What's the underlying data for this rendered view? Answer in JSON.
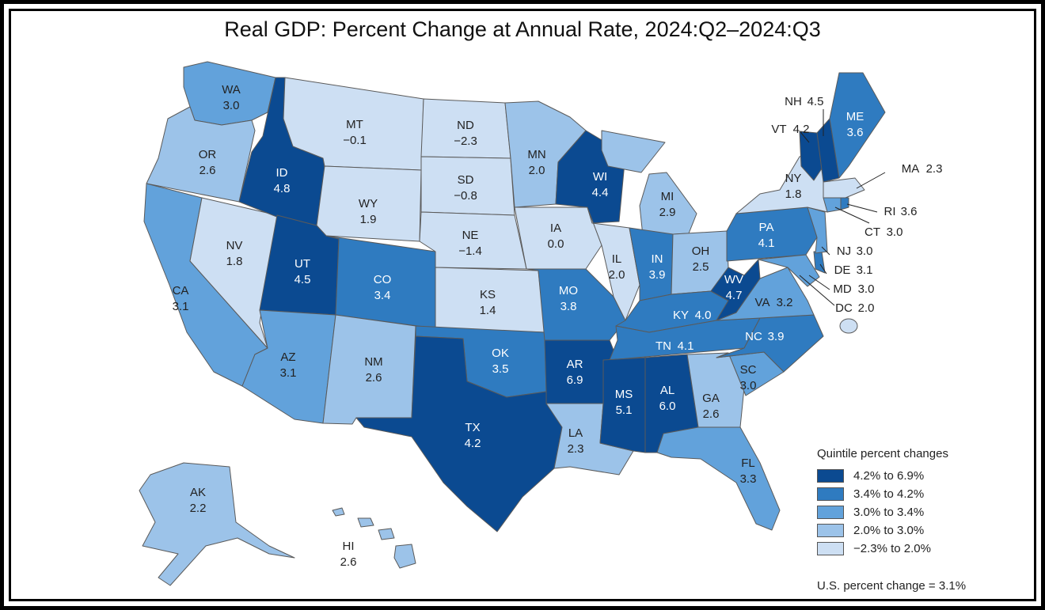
{
  "title": "Real GDP: Percent Change at Annual Rate, 2024:Q2–2024:Q3",
  "colors": {
    "q5": "#0b4a91",
    "q4": "#2f7bc0",
    "q3": "#62a2db",
    "q2": "#9cc3e9",
    "q1": "#cddff3"
  },
  "legend": {
    "title": "Quintile percent changes",
    "items": [
      {
        "label": "4.2% to 6.9%",
        "color": "#0b4a91"
      },
      {
        "label": "3.4% to 4.2%",
        "color": "#2f7bc0"
      },
      {
        "label": "3.0% to 3.4%",
        "color": "#62a2db"
      },
      {
        "label": "2.0% to 3.0%",
        "color": "#9cc3e9"
      },
      {
        "label": "−2.3% to 2.0%",
        "color": "#cddff3"
      }
    ]
  },
  "us_total": "U.S. percent change = 3.1%",
  "states": {
    "WA": {
      "abbr": "WA",
      "value": "3.0"
    },
    "OR": {
      "abbr": "OR",
      "value": "2.6"
    },
    "CA": {
      "abbr": "CA",
      "value": "3.1"
    },
    "NV": {
      "abbr": "NV",
      "value": "1.8"
    },
    "ID": {
      "abbr": "ID",
      "value": "4.8"
    },
    "MT": {
      "abbr": "MT",
      "value": "−0.1"
    },
    "WY": {
      "abbr": "WY",
      "value": "1.9"
    },
    "UT": {
      "abbr": "UT",
      "value": "4.5"
    },
    "AZ": {
      "abbr": "AZ",
      "value": "3.1"
    },
    "CO": {
      "abbr": "CO",
      "value": "3.4"
    },
    "NM": {
      "abbr": "NM",
      "value": "2.6"
    },
    "ND": {
      "abbr": "ND",
      "value": "−2.3"
    },
    "SD": {
      "abbr": "SD",
      "value": "−0.8"
    },
    "NE": {
      "abbr": "NE",
      "value": "−1.4"
    },
    "KS": {
      "abbr": "KS",
      "value": "1.4"
    },
    "OK": {
      "abbr": "OK",
      "value": "3.5"
    },
    "TX": {
      "abbr": "TX",
      "value": "4.2"
    },
    "MN": {
      "abbr": "MN",
      "value": "2.0"
    },
    "IA": {
      "abbr": "IA",
      "value": "0.0"
    },
    "MO": {
      "abbr": "MO",
      "value": "3.8"
    },
    "AR": {
      "abbr": "AR",
      "value": "6.9"
    },
    "LA": {
      "abbr": "LA",
      "value": "2.3"
    },
    "WI": {
      "abbr": "WI",
      "value": "4.4"
    },
    "IL": {
      "abbr": "IL",
      "value": "2.0"
    },
    "MI": {
      "abbr": "MI",
      "value": "2.9"
    },
    "IN": {
      "abbr": "IN",
      "value": "3.9"
    },
    "OH": {
      "abbr": "OH",
      "value": "2.5"
    },
    "KY": {
      "abbr": "KY",
      "value": "4.0"
    },
    "TN": {
      "abbr": "TN",
      "value": "4.1"
    },
    "MS": {
      "abbr": "MS",
      "value": "5.1"
    },
    "AL": {
      "abbr": "AL",
      "value": "6.0"
    },
    "GA": {
      "abbr": "GA",
      "value": "2.6"
    },
    "FL": {
      "abbr": "FL",
      "value": "3.3"
    },
    "SC": {
      "abbr": "SC",
      "value": "3.0"
    },
    "NC": {
      "abbr": "NC",
      "value": "3.9"
    },
    "VA": {
      "abbr": "VA",
      "value": "3.2"
    },
    "WV": {
      "abbr": "WV",
      "value": "4.7"
    },
    "PA": {
      "abbr": "PA",
      "value": "4.1"
    },
    "NY": {
      "abbr": "NY",
      "value": "1.8"
    },
    "ME": {
      "abbr": "ME",
      "value": "3.6"
    },
    "NH": {
      "abbr": "NH",
      "value": "4.5"
    },
    "VT": {
      "abbr": "VT",
      "value": "4.2"
    },
    "MA": {
      "abbr": "MA",
      "value": "2.3"
    },
    "RI": {
      "abbr": "RI",
      "value": "3.6"
    },
    "CT": {
      "abbr": "CT",
      "value": "3.0"
    },
    "NJ": {
      "abbr": "NJ",
      "value": "3.0"
    },
    "DE": {
      "abbr": "DE",
      "value": "3.1"
    },
    "MD": {
      "abbr": "MD",
      "value": "3.0"
    },
    "DC": {
      "abbr": "DC",
      "value": "2.0"
    },
    "AK": {
      "abbr": "AK",
      "value": "2.2"
    },
    "HI": {
      "abbr": "HI",
      "value": "2.6"
    }
  }
}
